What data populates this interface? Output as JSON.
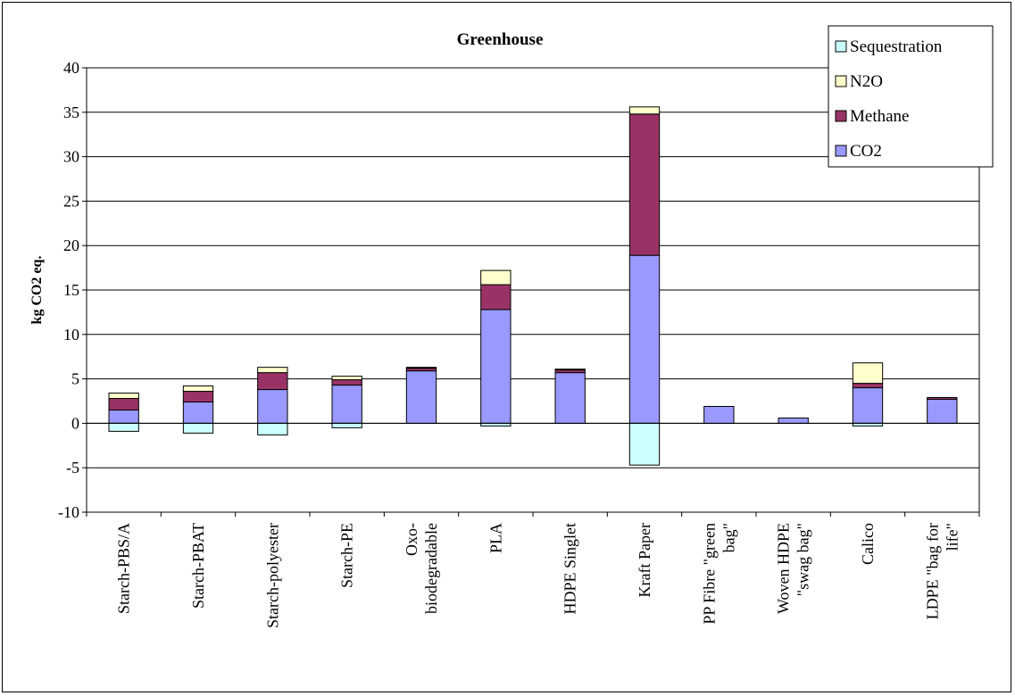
{
  "chart_data": {
    "type": "bar",
    "stacked": true,
    "title": "Greenhouse",
    "xlabel": "",
    "ylabel": "kg CO2 eq.",
    "ylim": [
      -10,
      40
    ],
    "yticks": [
      -10,
      -5,
      0,
      5,
      10,
      15,
      20,
      25,
      30,
      35,
      40
    ],
    "grid": true,
    "legend_position": "top-right",
    "categories": [
      "Starch-PBS/A",
      "Starch-PBAT",
      "Starch-polyester",
      "Starch-PE",
      "Oxo-\nbiodegradable",
      "PLA",
      "HDPE Singlet",
      "Kraft Paper",
      "PP Fibre \"green\nbag\"",
      "Woven HDPE\n\"swag bag\"",
      "Calico",
      "LDPE \"bag for\nlife\""
    ],
    "series": [
      {
        "name": "CO2",
        "color": "#9999ff",
        "values": [
          1.5,
          2.4,
          3.8,
          4.3,
          5.9,
          12.8,
          5.7,
          18.9,
          1.9,
          0.6,
          4.0,
          2.7
        ]
      },
      {
        "name": "Methane",
        "color": "#993366",
        "values": [
          1.3,
          1.2,
          1.9,
          0.6,
          0.3,
          2.8,
          0.3,
          15.9,
          0.0,
          0.0,
          0.5,
          0.2
        ]
      },
      {
        "name": "N2O",
        "color": "#ffffcc",
        "values": [
          0.6,
          0.6,
          0.6,
          0.4,
          0.1,
          1.6,
          0.1,
          0.8,
          0.0,
          0.0,
          2.3,
          0.0
        ]
      },
      {
        "name": "Sequestration",
        "color": "#ccffff",
        "values": [
          -0.9,
          -1.1,
          -1.3,
          -0.5,
          0.0,
          -0.3,
          0.0,
          -4.7,
          0.0,
          0.0,
          -0.3,
          0.0
        ]
      }
    ]
  }
}
